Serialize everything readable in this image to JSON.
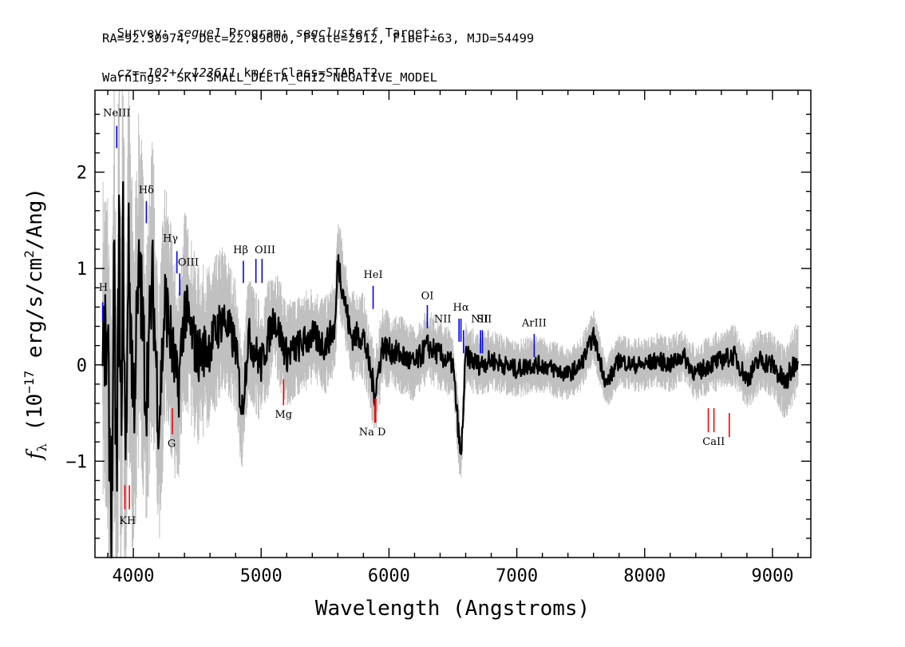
{
  "header": {
    "line1": {
      "a": "Survey: ",
      "survey": "segue1",
      "b": " Program: ",
      "program": "segclusterf",
      "c": " Target:"
    },
    "line2": "RA=92.30974, Dec=22.89600, Plate=2912, Fiber=63, MJD=54499",
    "line3": {
      "cz": "cz=−102+/−123611",
      "rest": " km/s Class=STAR T2"
    },
    "line4": "Warnings: SKY SMALL_DELTA_CHI2 NEGATIVE_MODEL"
  },
  "chart_data": {
    "type": "line",
    "xlabel": "Wavelength (Angstroms)",
    "ylabel": "f_λ (10^-17 erg/s/cm^2/Ang)",
    "xlim": [
      3700,
      9300
    ],
    "ylim": [
      -2.0,
      2.85
    ],
    "x_ticks": [
      4000,
      5000,
      6000,
      7000,
      8000,
      9000
    ],
    "y_ticks": [
      -1,
      0,
      1,
      2
    ],
    "series": [
      {
        "role": "error",
        "color": "#c0c0c0",
        "x": [
          3760,
          3850,
          3900,
          3950,
          4000,
          4100,
          4200,
          4300,
          4400,
          4600,
          4800,
          5000,
          5200,
          5400,
          5600,
          5800,
          6000,
          6300,
          6600,
          7000,
          7500,
          8000,
          8500,
          9000,
          9200
        ],
        "y": [
          1.2,
          1.6,
          1.8,
          1.5,
          1.4,
          1.2,
          1.0,
          0.85,
          0.75,
          0.6,
          0.5,
          0.45,
          0.4,
          0.38,
          0.35,
          0.33,
          0.3,
          0.28,
          0.25,
          0.22,
          0.2,
          0.2,
          0.22,
          0.25,
          0.3
        ]
      },
      {
        "role": "flux",
        "color": "#000000",
        "x": [
          3760,
          3800,
          3830,
          3850,
          3870,
          3890,
          3900,
          3920,
          3940,
          3960,
          3980,
          4000,
          4050,
          4100,
          4150,
          4200,
          4250,
          4300,
          4350,
          4400,
          4500,
          4600,
          4700,
          4800,
          4850,
          4900,
          5000,
          5100,
          5200,
          5300,
          5400,
          5500,
          5580,
          5600,
          5700,
          5800,
          5890,
          5950,
          6000,
          6100,
          6200,
          6300,
          6400,
          6500,
          6563,
          6600,
          6700,
          6800,
          6900,
          7000,
          7100,
          7200,
          7300,
          7400,
          7500,
          7600,
          7700,
          7800,
          7900,
          8000,
          8100,
          8200,
          8300,
          8400,
          8500,
          8600,
          8700,
          8800,
          8900,
          9000,
          9100,
          9200
        ],
        "y": [
          0.3,
          0.0,
          -1.5,
          0.8,
          -1.3,
          1.6,
          -0.9,
          1.3,
          -1.2,
          1.2,
          0.5,
          -0.4,
          1.0,
          -0.3,
          0.9,
          -0.6,
          0.7,
          0.2,
          -0.3,
          0.6,
          0.1,
          0.2,
          0.5,
          0.2,
          -0.5,
          0.3,
          0.0,
          0.5,
          0.1,
          0.2,
          0.3,
          0.2,
          0.4,
          1.1,
          0.3,
          0.3,
          -0.3,
          0.2,
          0.15,
          0.1,
          0.0,
          0.2,
          0.1,
          0.0,
          -1.0,
          0.1,
          0.0,
          0.05,
          0.0,
          -0.05,
          0.0,
          0.0,
          -0.05,
          -0.1,
          0.0,
          0.3,
          -0.2,
          0.05,
          0.0,
          0.0,
          0.05,
          0.0,
          0.1,
          -0.1,
          0.0,
          0.05,
          0.1,
          -0.15,
          0.05,
          0.0,
          -0.2,
          0.1
        ]
      }
    ],
    "emission_lines": [
      {
        "label": "Hε",
        "display": "H",
        "x": 3760,
        "y0": 0.65,
        "y1": 0.45,
        "lx": 3765,
        "ly": 0.77
      },
      {
        "label": "NeIII",
        "x": 3870,
        "y0": 2.48,
        "y1": 2.25,
        "lx": 3870,
        "ly": 2.58
      },
      {
        "label": "Hδ",
        "x": 4102,
        "y0": 1.7,
        "y1": 1.47,
        "lx": 4102,
        "ly": 1.78
      },
      {
        "label": "Hγ",
        "x": 4341,
        "y0": 1.18,
        "y1": 0.95,
        "lx": 4290,
        "ly": 1.28
      },
      {
        "label": "OIII",
        "x": 4363,
        "y0": 0.95,
        "y1": 0.72,
        "lx": 4430,
        "ly": 1.03
      },
      {
        "label": "Hβ",
        "x": 4861,
        "y0": 1.08,
        "y1": 0.85,
        "lx": 4840,
        "ly": 1.16
      },
      {
        "label": "OIII",
        "x": 4959,
        "y0": 1.1,
        "y1": 0.85,
        "lx": 5030,
        "ly": 1.16
      },
      {
        "label": "OIII2",
        "display": "",
        "x": 5007,
        "y0": 1.1,
        "y1": 0.85,
        "lx": 5007,
        "ly": 1.16
      },
      {
        "label": "HeI",
        "x": 5876,
        "y0": 0.82,
        "y1": 0.58,
        "lx": 5876,
        "ly": 0.9
      },
      {
        "label": "OI",
        "x": 6300,
        "y0": 0.62,
        "y1": 0.38,
        "lx": 6300,
        "ly": 0.68
      },
      {
        "label": "NII",
        "x": 6548,
        "y0": 0.48,
        "y1": 0.24,
        "lx": 6420,
        "ly": 0.44
      },
      {
        "label": "Hα",
        "x": 6563,
        "y0": 0.48,
        "y1": 0.24,
        "lx": 6563,
        "ly": 0.56
      },
      {
        "label": "NII2",
        "display": "",
        "x": 6583,
        "y0": 0.36,
        "y1": 0.12,
        "lx": 6583,
        "ly": 0.36
      },
      {
        "label": "NII",
        "x": 6716,
        "y0": 0.36,
        "y1": 0.12,
        "lx": 6710,
        "ly": 0.44
      },
      {
        "label": "SII",
        "x": 6731,
        "y0": 0.36,
        "y1": 0.12,
        "lx": 6745,
        "ly": 0.44
      },
      {
        "label": "ArIII",
        "x": 7136,
        "y0": 0.32,
        "y1": 0.08,
        "lx": 7136,
        "ly": 0.4
      }
    ],
    "absorption_lines": [
      {
        "label": "K",
        "display": "KH",
        "x": 3934,
        "y0": -1.25,
        "y1": -1.5,
        "lx": 3955,
        "ly": -1.65
      },
      {
        "label": "H",
        "display": "",
        "x": 3969,
        "y0": -1.25,
        "y1": -1.5,
        "lx": 3969,
        "ly": -1.65
      },
      {
        "label": "G",
        "x": 4305,
        "y0": -0.45,
        "y1": -0.72,
        "lx": 4300,
        "ly": -0.85
      },
      {
        "label": "Mg",
        "x": 5175,
        "y0": -0.15,
        "y1": -0.42,
        "lx": 5175,
        "ly": -0.55
      },
      {
        "label": "Na",
        "display": "Na  D",
        "x": 5890,
        "y0": -0.35,
        "y1": -0.6,
        "lx": 5870,
        "ly": -0.73
      },
      {
        "label": "Na2",
        "display": "",
        "x": 5896,
        "y0": -0.35,
        "y1": -0.6,
        "lx": 5896,
        "ly": -0.73
      },
      {
        "label": "CaII",
        "x": 8498,
        "y0": -0.45,
        "y1": -0.7,
        "lx": 8540,
        "ly": -0.83
      },
      {
        "label": "CaII2",
        "display": "",
        "x": 8542,
        "y0": -0.45,
        "y1": -0.7,
        "lx": 8542,
        "ly": -0.83
      },
      {
        "label": "CaII3",
        "display": "",
        "x": 8662,
        "y0": -0.5,
        "y1": -0.75,
        "lx": 8662,
        "ly": -0.83
      }
    ],
    "colors": {
      "emission": "#0000ff",
      "absorption": "#ff0000",
      "flux": "#000000",
      "error": "#c0c0c0"
    }
  }
}
